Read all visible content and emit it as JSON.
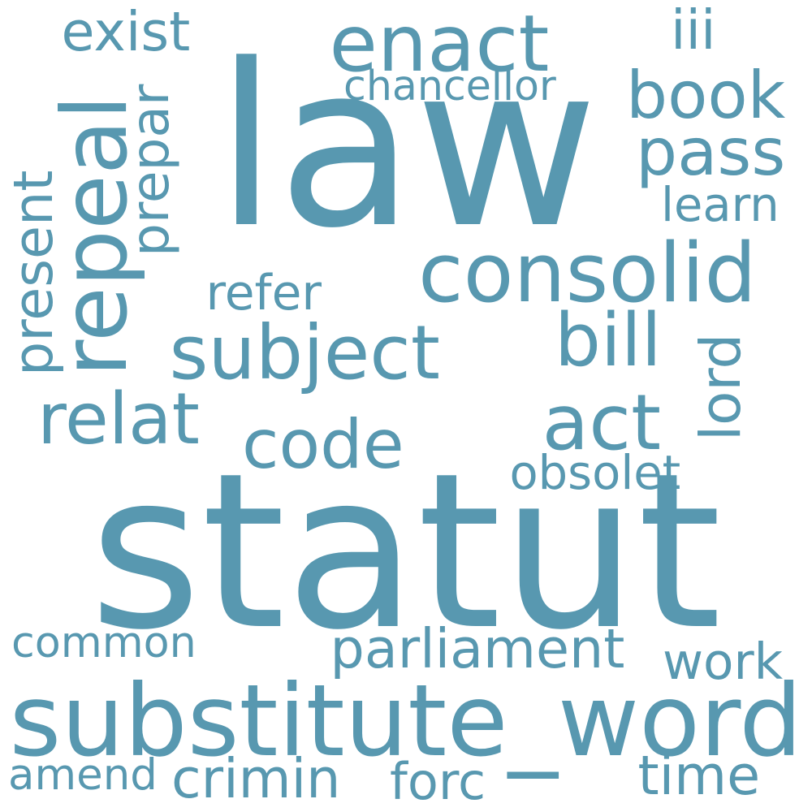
{
  "colors": {
    "background": "#ffffff",
    "word": "#5898b0"
  },
  "words": [
    {
      "text": "law",
      "weight": 1.0,
      "orientation": "horizontal"
    },
    {
      "text": "statut",
      "weight": 1.0,
      "orientation": "horizontal"
    },
    {
      "text": "substitute_word",
      "weight": 0.5,
      "orientation": "horizontal"
    },
    {
      "text": "consolid",
      "weight": 0.42,
      "orientation": "horizontal"
    },
    {
      "text": "enact",
      "weight": 0.4,
      "orientation": "horizontal"
    },
    {
      "text": "repeal",
      "weight": 0.4,
      "orientation": "vertical"
    },
    {
      "text": "subject",
      "weight": 0.4,
      "orientation": "horizontal"
    },
    {
      "text": "act",
      "weight": 0.4,
      "orientation": "horizontal"
    },
    {
      "text": "bill",
      "weight": 0.35,
      "orientation": "horizontal"
    },
    {
      "text": "relat",
      "weight": 0.35,
      "orientation": "horizontal"
    },
    {
      "text": "book",
      "weight": 0.35,
      "orientation": "horizontal"
    },
    {
      "text": "code",
      "weight": 0.35,
      "orientation": "horizontal"
    },
    {
      "text": "pass",
      "weight": 0.32,
      "orientation": "horizontal"
    },
    {
      "text": "parliament",
      "weight": 0.28,
      "orientation": "horizontal"
    },
    {
      "text": "common",
      "weight": 0.27,
      "orientation": "horizontal"
    },
    {
      "text": "crimin",
      "weight": 0.27,
      "orientation": "horizontal"
    },
    {
      "text": "time",
      "weight": 0.27,
      "orientation": "horizontal"
    },
    {
      "text": "forc",
      "weight": 0.25,
      "orientation": "horizontal"
    },
    {
      "text": "amend",
      "weight": 0.25,
      "orientation": "horizontal"
    },
    {
      "text": "work",
      "weight": 0.25,
      "orientation": "horizontal"
    },
    {
      "text": "exist",
      "weight": 0.25,
      "orientation": "horizontal"
    },
    {
      "text": "iii",
      "weight": 0.25,
      "orientation": "horizontal"
    },
    {
      "text": "refer",
      "weight": 0.24,
      "orientation": "horizontal"
    },
    {
      "text": "learn",
      "weight": 0.23,
      "orientation": "horizontal"
    },
    {
      "text": "obsolet",
      "weight": 0.22,
      "orientation": "horizontal"
    },
    {
      "text": "lord",
      "weight": 0.22,
      "orientation": "vertical"
    },
    {
      "text": "prepar",
      "weight": 0.22,
      "orientation": "vertical"
    },
    {
      "text": "present",
      "weight": 0.22,
      "orientation": "vertical"
    },
    {
      "text": "chancellor",
      "weight": 0.18,
      "orientation": "horizontal"
    }
  ]
}
